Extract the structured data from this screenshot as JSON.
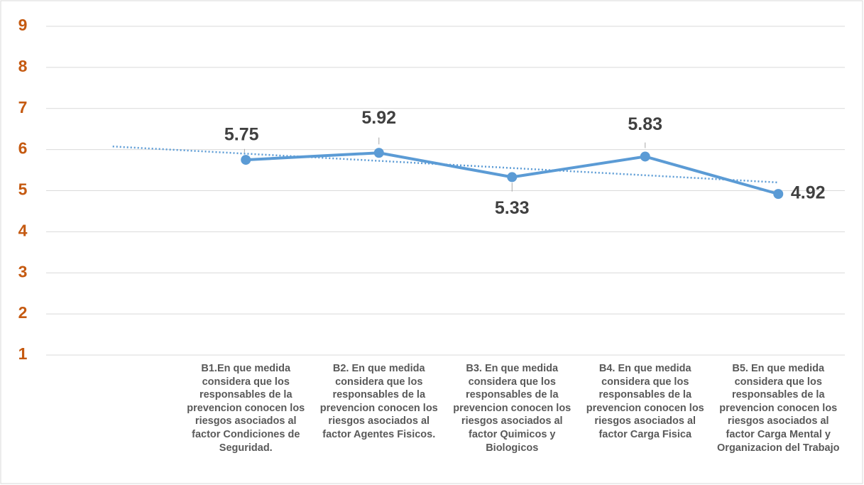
{
  "chart_data": {
    "type": "line",
    "categories": [
      null,
      "B1.En que medida considera que los responsables de la prevencion conocen los riesgos asociados al factor Condiciones de Seguridad.",
      "B2. En que medida considera que los responsables de la prevencion conocen los riesgos asociados al factor Agentes Fisicos.",
      "B3. En que medida considera que los responsables de la prevencion conocen los riesgos asociados al factor Quimicos y Biologicos",
      "B4. En que medida considera que los responsables de la prevencion conocen los riesgos asociados al factor Carga Fisica",
      "B5. En que medida considera que los responsables de la prevencion conocen los riesgos asociados al factor Carga Mental y Organizacion del Trabajo"
    ],
    "values": [
      null,
      5.75,
      5.92,
      5.33,
      5.83,
      4.92
    ],
    "color": "#5b9bd5",
    "ylim": [
      1,
      9
    ],
    "yticks": [
      1,
      2,
      3,
      4,
      5,
      6,
      7,
      8,
      9
    ],
    "grid": true,
    "trendline": true
  }
}
